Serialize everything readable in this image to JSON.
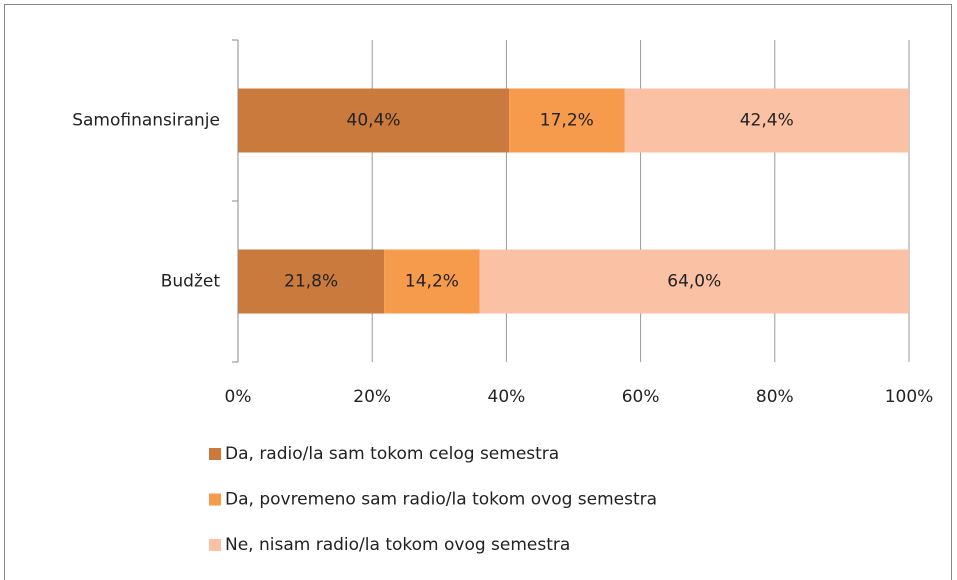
{
  "chart_data": {
    "type": "stacked_barh",
    "categories": [
      "Samofinansiranje",
      "Budžet"
    ],
    "series": [
      {
        "name": "Da, radio/la sam tokom celog semestra",
        "color": "#c97a3c",
        "values": [
          40.4,
          21.8
        ],
        "value_labels": [
          "40,4%",
          "21,8%"
        ]
      },
      {
        "name": "Da, povremeno sam radio/la tokom ovog semestra",
        "color": "#f69a4c",
        "values": [
          17.2,
          14.2
        ],
        "value_labels": [
          "17,2%",
          "14,2%"
        ]
      },
      {
        "name": "Ne, nisam radio/la tokom ovog semestra",
        "color": "#fac1a5",
        "values": [
          42.4,
          64.0
        ],
        "value_labels": [
          "42,4%",
          "64,0%"
        ]
      }
    ],
    "xlim": [
      0,
      100
    ],
    "xticks": [
      {
        "value": 0,
        "label": "0%"
      },
      {
        "value": 20,
        "label": "20%"
      },
      {
        "value": 40,
        "label": "40%"
      },
      {
        "value": 60,
        "label": "60%"
      },
      {
        "value": 80,
        "label": "80%"
      },
      {
        "value": 100,
        "label": "100%"
      }
    ],
    "grid": true,
    "legend": "bottom"
  }
}
